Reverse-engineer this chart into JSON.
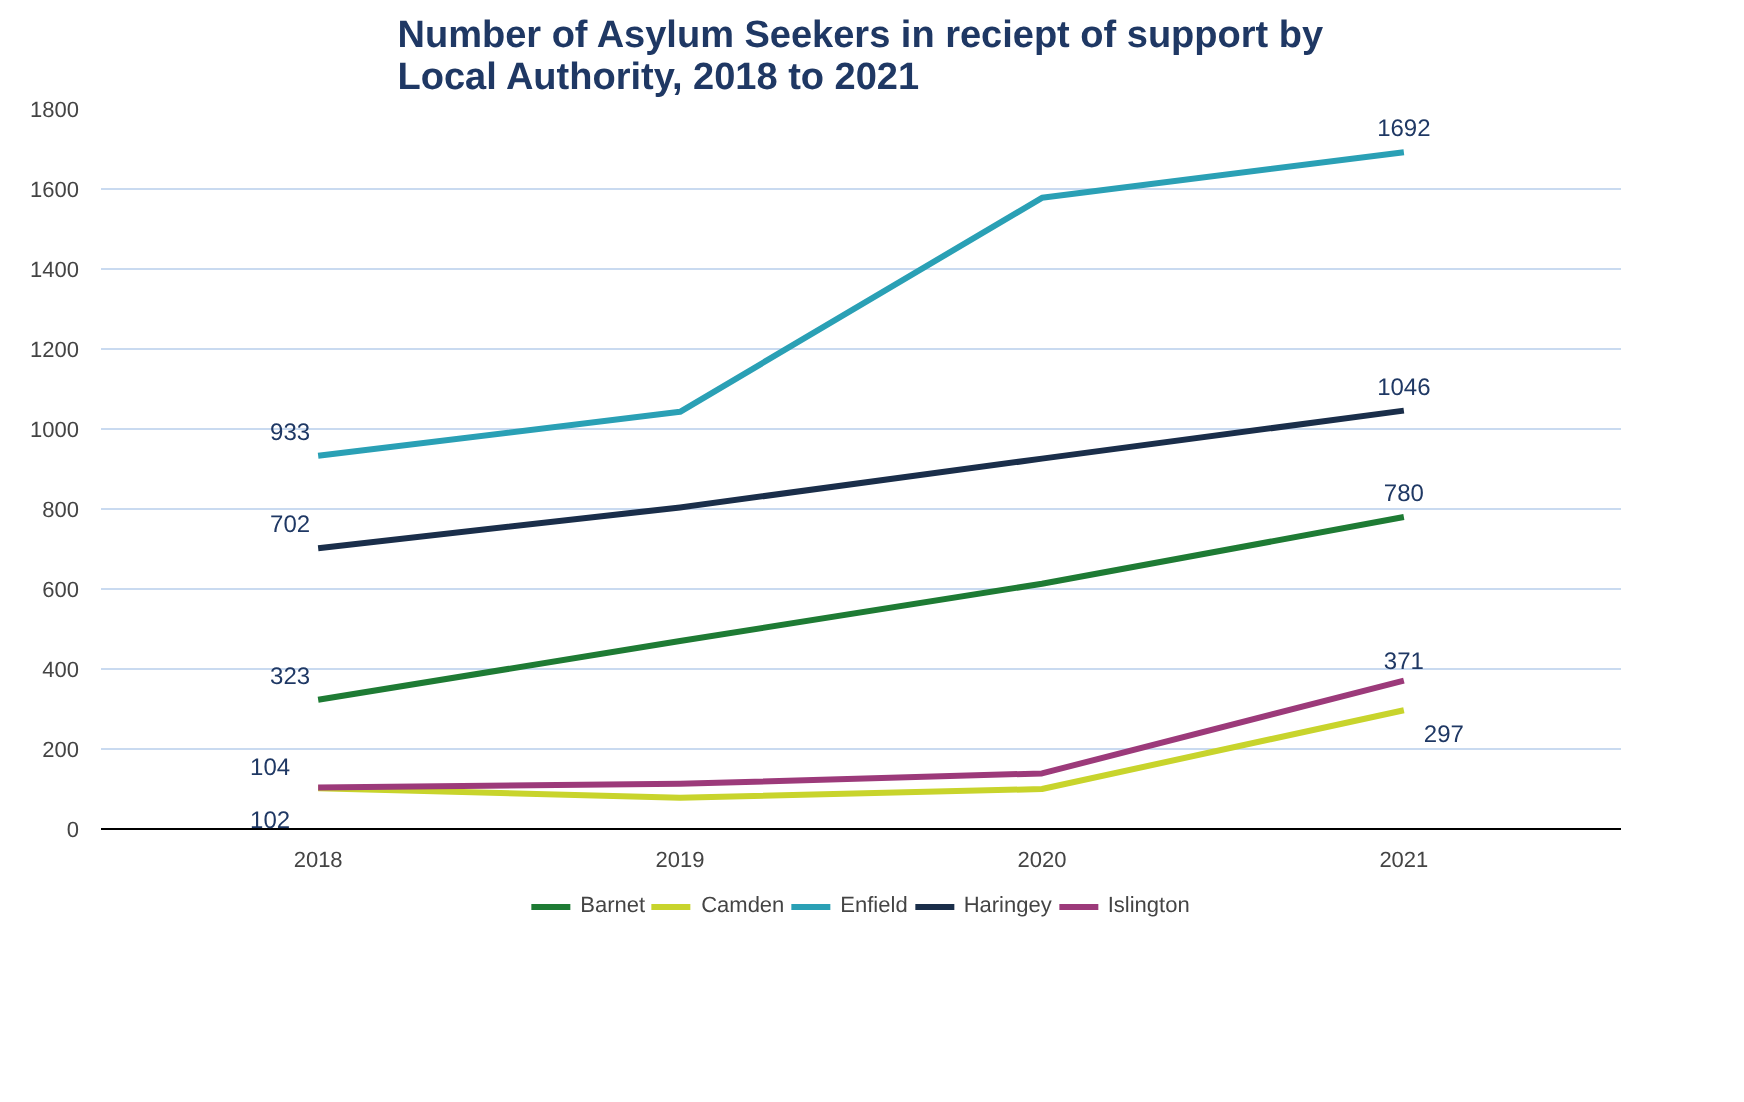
{
  "chart_data": {
    "type": "line",
    "title": "Number of Asylum Seekers in reciept of support by\nLocal Authority, 2018 to 2021",
    "categories": [
      "2018",
      "2019",
      "2020",
      "2021"
    ],
    "series": [
      {
        "name": "Barnet",
        "color": "#1e7b34",
        "values": [
          323,
          470,
          613,
          780
        ],
        "value_labels": [
          "323",
          null,
          null,
          "780"
        ]
      },
      {
        "name": "Camden",
        "color": "#c8d42c",
        "values": [
          102,
          78,
          100,
          297
        ],
        "value_labels": [
          "102",
          null,
          null,
          "297"
        ]
      },
      {
        "name": "Enfield",
        "color": "#2aa0b5",
        "values": [
          933,
          1043,
          1578,
          1692
        ],
        "value_labels": [
          "933",
          null,
          null,
          "1692"
        ]
      },
      {
        "name": "Haringey",
        "color": "#1a2e4a",
        "values": [
          702,
          804,
          926,
          1046
        ],
        "value_labels": [
          "702",
          null,
          null,
          "1046"
        ]
      },
      {
        "name": "Islington",
        "color": "#9c3a7a",
        "values": [
          104,
          113,
          139,
          371
        ],
        "value_labels": [
          "104",
          null,
          null,
          "371"
        ]
      }
    ],
    "ylim": [
      0,
      1800
    ],
    "yticks": [
      0,
      200,
      400,
      600,
      800,
      1000,
      1200,
      1400,
      1600,
      1800
    ],
    "grid": "y",
    "legend": "bottom",
    "marker": "none",
    "line_style": "solid"
  }
}
